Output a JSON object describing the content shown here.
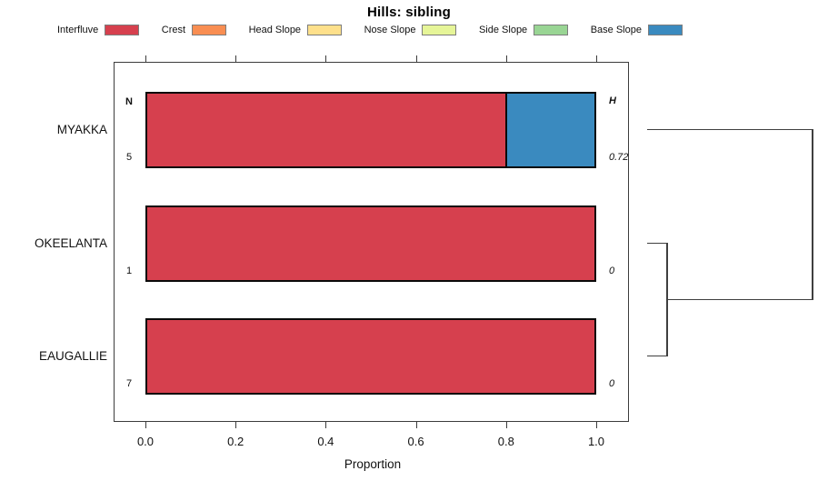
{
  "title": "Hills: sibling",
  "legend": [
    {
      "label": "Interfluve",
      "color": "#d6404e"
    },
    {
      "label": "Crest",
      "color": "#f98e52"
    },
    {
      "label": "Head Slope",
      "color": "#fee08b"
    },
    {
      "label": "Nose Slope",
      "color": "#e6f598"
    },
    {
      "label": "Side Slope",
      "color": "#99d594"
    },
    {
      "label": "Base Slope",
      "color": "#3a8abf"
    }
  ],
  "chart_data": {
    "type": "bar",
    "orientation": "horizontal",
    "stacked": true,
    "title": "Hills: sibling",
    "xlabel": "Proportion",
    "xlim": [
      0,
      1
    ],
    "xticks": [
      0.0,
      0.2,
      0.4,
      0.6,
      0.8,
      1.0
    ],
    "xtick_labels": [
      "0.0",
      "0.2",
      "0.4",
      "0.6",
      "0.8",
      "1.0"
    ],
    "grid": false,
    "legend_position": "top",
    "categories": [
      "MYAKKA",
      "OKEELANTA",
      "EAUGALLIE"
    ],
    "series": [
      {
        "name": "Interfluve",
        "color": "#d6404e",
        "values": [
          0.8,
          1.0,
          1.0
        ]
      },
      {
        "name": "Crest",
        "color": "#f98e52",
        "values": [
          0,
          0,
          0
        ]
      },
      {
        "name": "Head Slope",
        "color": "#fee08b",
        "values": [
          0,
          0,
          0
        ]
      },
      {
        "name": "Nose Slope",
        "color": "#e6f598",
        "values": [
          0,
          0,
          0
        ]
      },
      {
        "name": "Side Slope",
        "color": "#99d594",
        "values": [
          0,
          0,
          0
        ]
      },
      {
        "name": "Base Slope",
        "color": "#3a8abf",
        "values": [
          0.2,
          0,
          0
        ]
      }
    ],
    "n_column": {
      "header": "N",
      "values": [
        "5",
        "1",
        "7"
      ]
    },
    "h_column": {
      "header": "H",
      "values": [
        "0.72",
        "0",
        "0"
      ]
    },
    "dendrogram": {
      "leaves": [
        "MYAKKA",
        "OKEELANTA",
        "EAUGALLIE"
      ],
      "merges": [
        {
          "members": [
            "OKEELANTA",
            "EAUGALLIE"
          ],
          "x_frac": 0.127
        },
        {
          "members": [
            "MYAKKA",
            "OKEELANTA+EAUGALLIE"
          ],
          "x_frac": 1.0
        }
      ]
    }
  }
}
